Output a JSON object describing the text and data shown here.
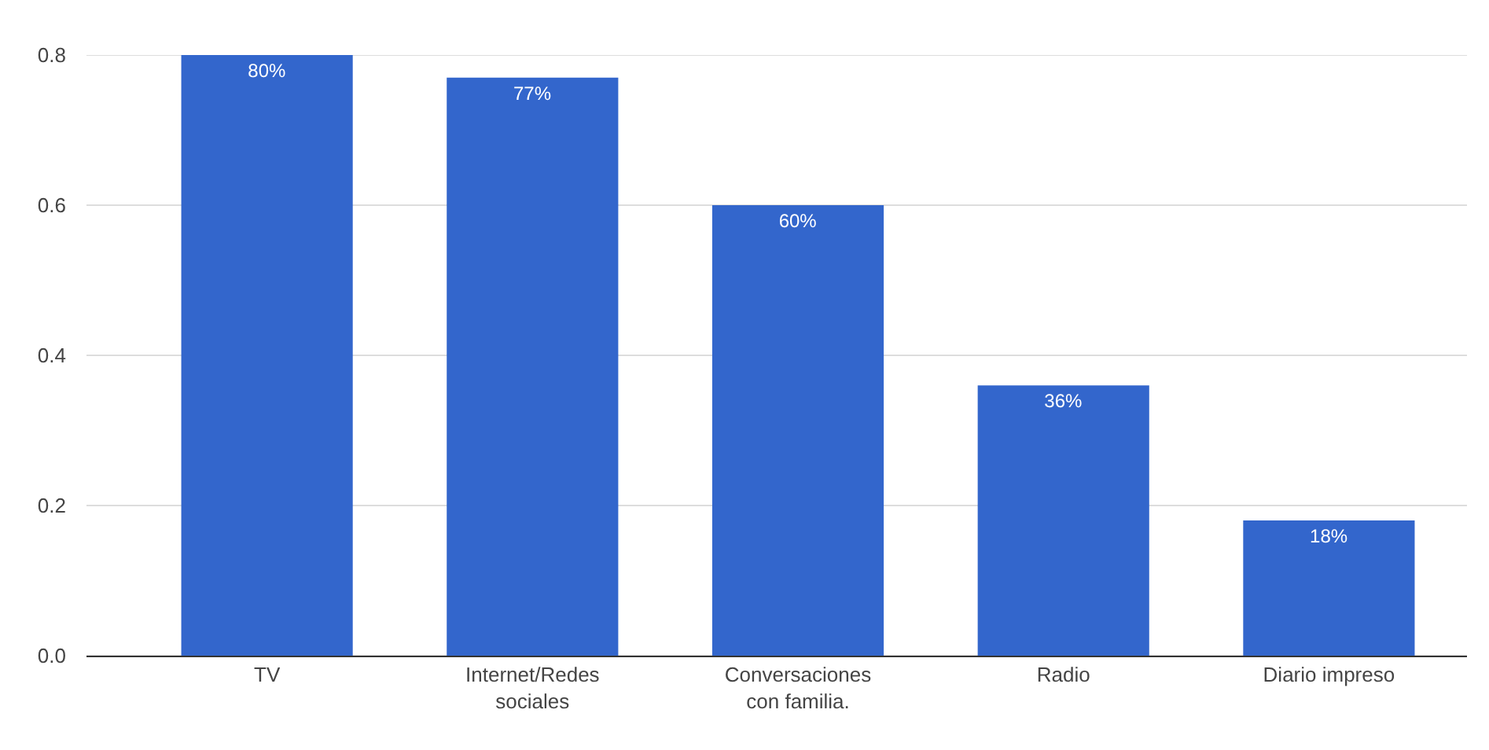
{
  "chart_data": {
    "type": "bar",
    "categories": [
      "TV",
      "Internet/Redes sociales",
      "Conversaciones con familia.",
      "Radio",
      "Diario impreso"
    ],
    "values": [
      0.8,
      0.77,
      0.6,
      0.36,
      0.18
    ],
    "value_labels": [
      "80%",
      "77%",
      "60%",
      "36%",
      "18%"
    ],
    "color": "#3366cc",
    "ylim": [
      0,
      0.8
    ],
    "yticks": [
      {
        "value": 0,
        "label": "0.0"
      },
      0.2,
      0.4,
      0.6,
      0.8
    ],
    "grid": "y"
  }
}
